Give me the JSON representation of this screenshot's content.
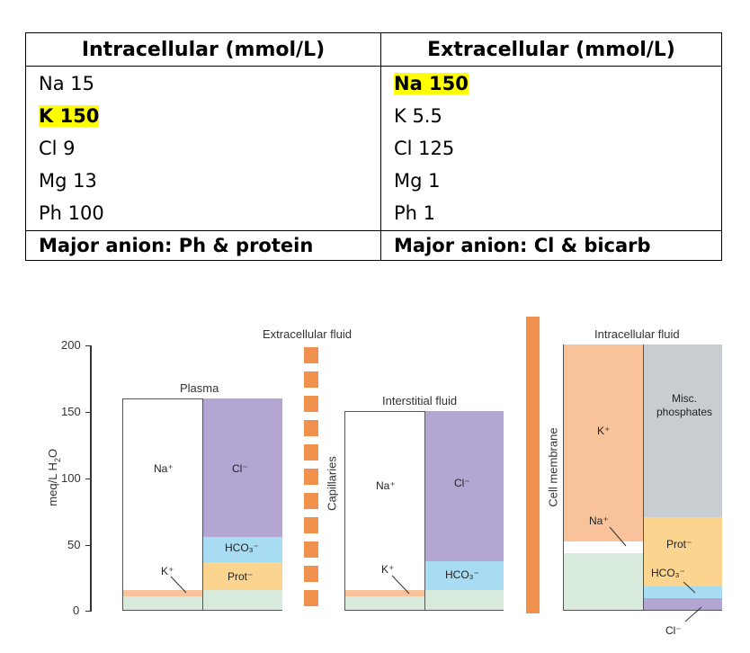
{
  "table": {
    "headers": [
      "Intracellular (mmol/L)",
      "Extracellular (mmol/L)"
    ],
    "intracellular": [
      "Na 15",
      "K 150",
      "Cl 9",
      "Mg 13",
      "Ph 100"
    ],
    "extracellular": [
      "Na 150",
      "K 5.5",
      "Cl 125",
      "Mg 1",
      "Ph 1"
    ],
    "footer": [
      "Major anion: Ph & protein",
      "Major anion: Cl & bicarb"
    ]
  },
  "figure": {
    "y_axis_label": "meq/L H2O",
    "y_ticks": [
      "200",
      "150",
      "100",
      "50",
      "0"
    ],
    "extracellular_fluid_label": "Extracellular fluid",
    "intracellular_fluid_label": "Intracellular fluid",
    "plasma_label": "Plasma",
    "interstitial_label": "Interstitial fluid",
    "capillaries_label": "Capillaries",
    "cell_membrane_label": "Cell membrane",
    "ion_labels": {
      "na": "Na⁺",
      "k": "K⁺",
      "cl": "Cl⁻",
      "hco3": "HCO₃⁻",
      "prot": "Prot⁻",
      "misc_phosphates": "Misc.\nphosphates"
    },
    "colors": {
      "cl": "#b3a6d2",
      "hco3": "#a7dcf2",
      "prot": "#fbd590",
      "k": "#f8c29b",
      "base": "#d7eadb",
      "misc": "#c9cdd2",
      "membrane": "#f0924e"
    }
  },
  "chart_data": {
    "type": "stacked-bar",
    "ylabel": "meq/L H2O",
    "ylim": [
      0,
      200
    ],
    "yticks": [
      0,
      50,
      100,
      150,
      200
    ],
    "compartments": [
      {
        "name": "Plasma",
        "cations": [
          {
            "ion": "Other",
            "value": 10
          },
          {
            "ion": "K+",
            "value": 5
          },
          {
            "ion": "Na+",
            "value": 145
          }
        ],
        "anions": [
          {
            "ion": "Other",
            "value": 15
          },
          {
            "ion": "Prot-",
            "value": 21
          },
          {
            "ion": "HCO3-",
            "value": 19
          },
          {
            "ion": "Cl-",
            "value": 105
          }
        ]
      },
      {
        "name": "Interstitial fluid",
        "cations": [
          {
            "ion": "Other",
            "value": 10
          },
          {
            "ion": "K+",
            "value": 5
          },
          {
            "ion": "Na+",
            "value": 136
          }
        ],
        "anions": [
          {
            "ion": "Other",
            "value": 15
          },
          {
            "ion": "HCO3-",
            "value": 22
          },
          {
            "ion": "Cl-",
            "value": 114
          }
        ]
      },
      {
        "name": "Intracellular fluid",
        "cations": [
          {
            "ion": "Other",
            "value": 43
          },
          {
            "ion": "Na+",
            "value": 9
          },
          {
            "ion": "K+",
            "value": 148
          }
        ],
        "anions": [
          {
            "ion": "Cl-",
            "value": 9
          },
          {
            "ion": "HCO3-",
            "value": 9
          },
          {
            "ion": "Prot-",
            "value": 52
          },
          {
            "ion": "Misc. phosphates",
            "value": 130
          }
        ]
      }
    ]
  }
}
